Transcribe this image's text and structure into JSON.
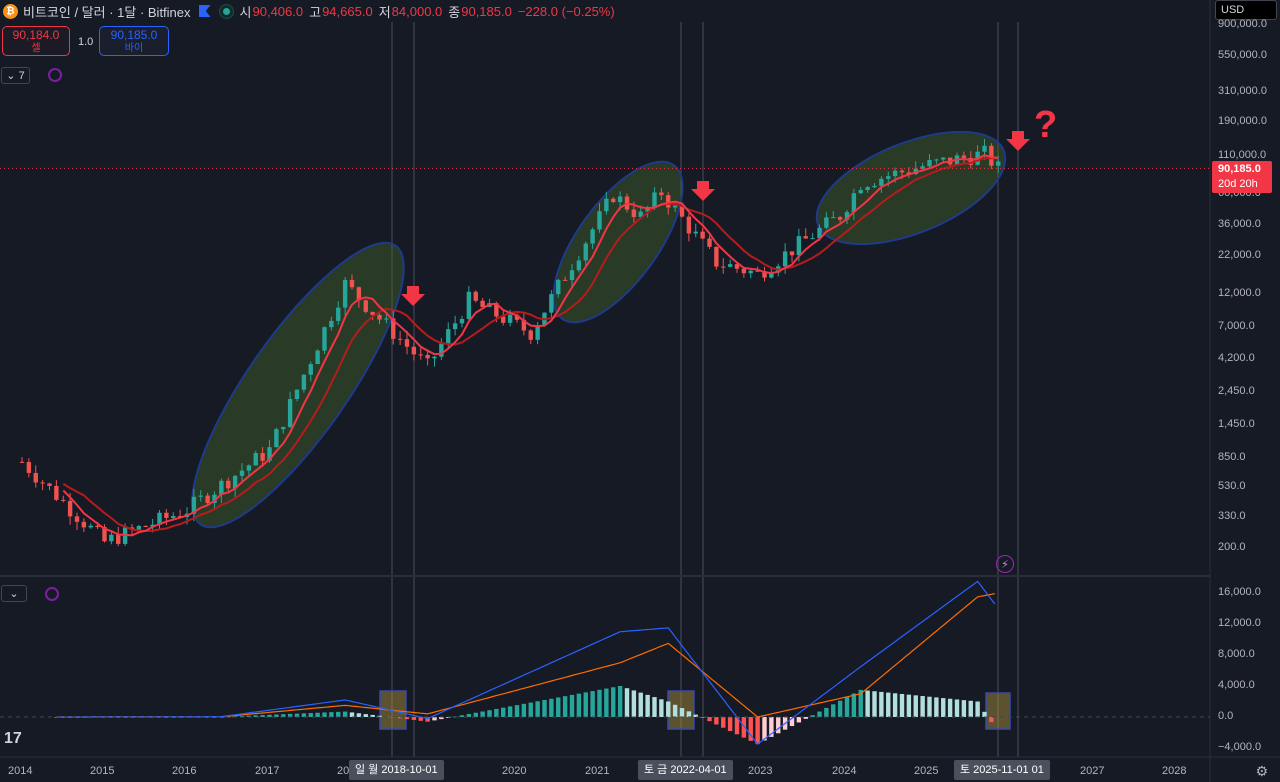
{
  "header": {
    "title": "비트코인 / 달러 · 1달 · Bitfinex",
    "coin_symbol": "₿",
    "open_label": "시",
    "open": "90,406.0",
    "high_label": "고",
    "high": "94,665.0",
    "low_label": "저",
    "low": "84,000.0",
    "close_label": "종",
    "close": "90,185.0",
    "change": "−228.0 (−0.25%)"
  },
  "trade": {
    "sell_price": "90,184.0",
    "sell_label": "셀",
    "spread": "1.0",
    "buy_price": "90,185.0",
    "buy_label": "바이"
  },
  "controls": {
    "indicator_count": "7",
    "currency": "USD"
  },
  "price_axis": [
    "900,000.0",
    "550,000.0",
    "310,000.0",
    "190,000.0",
    "110,000.0",
    "60,000.0",
    "36,000.0",
    "22,000.0",
    "12,000.0",
    "7,000.0",
    "4,200.0",
    "2,450.0",
    "1,450.0",
    "850.0",
    "530.0",
    "330.0",
    "200.0"
  ],
  "macd_axis": [
    "16,000.0",
    "12,000.0",
    "8,000.0",
    "4,000.0",
    "0.0",
    "−4,000.0"
  ],
  "time_axis": [
    "2014",
    "2015",
    "2016",
    "2017",
    "20",
    "2020",
    "2021",
    "2023",
    "2024",
    "2025",
    "2027",
    "2028"
  ],
  "crosshair_dates": [
    "일  월 2018-10-01",
    "토  금 2022-04-01",
    "토 2025-11-01  01"
  ],
  "last_price": {
    "value": "90,185.0",
    "countdown": "20d 20h"
  },
  "colors": {
    "up": "#26a69a",
    "down": "#ef5350",
    "ma": "#f23645",
    "macd": "#2962ff",
    "signal": "#ff6d00",
    "background": "#161a25"
  },
  "chart_data": {
    "type": "candlestick",
    "interval": "1M",
    "scale": "log",
    "ylim": [
      150,
      1000000
    ],
    "xlim": [
      "2014-01",
      "2028-03"
    ],
    "key_prices": [
      {
        "date": "2014-01",
        "close": 800
      },
      {
        "date": "2015-01",
        "close": 220
      },
      {
        "date": "2016-01",
        "close": 370
      },
      {
        "date": "2017-01",
        "close": 970
      },
      {
        "date": "2017-12",
        "close": 14000
      },
      {
        "date": "2018-12",
        "close": 3700
      },
      {
        "date": "2019-06",
        "close": 10800
      },
      {
        "date": "2020-03",
        "close": 6400
      },
      {
        "date": "2021-03",
        "close": 58800
      },
      {
        "date": "2021-07",
        "close": 41500
      },
      {
        "date": "2021-10",
        "close": 61300
      },
      {
        "date": "2022-06",
        "close": 19900
      },
      {
        "date": "2022-12",
        "close": 16500
      },
      {
        "date": "2023-12",
        "close": 42300
      },
      {
        "date": "2024-03",
        "close": 71300
      },
      {
        "date": "2024-12",
        "close": 93400
      },
      {
        "date": "2025-09",
        "close": 114000
      },
      {
        "date": "2025-11",
        "close": 90185
      }
    ],
    "macd_series": [
      {
        "date": "2017-12",
        "macd": 2200,
        "signal": 1500
      },
      {
        "date": "2018-12",
        "macd": -200,
        "signal": 400
      },
      {
        "date": "2021-04",
        "macd": 11000,
        "signal": 7000
      },
      {
        "date": "2021-11",
        "macd": 11500,
        "signal": 9500
      },
      {
        "date": "2022-12",
        "macd": -3500,
        "signal": 0
      },
      {
        "date": "2024-03",
        "macd": 6500,
        "signal": 3000
      },
      {
        "date": "2025-08",
        "macd": 17500,
        "signal": 15500
      },
      {
        "date": "2025-11",
        "macd": 14000,
        "signal": 16000
      }
    ]
  }
}
